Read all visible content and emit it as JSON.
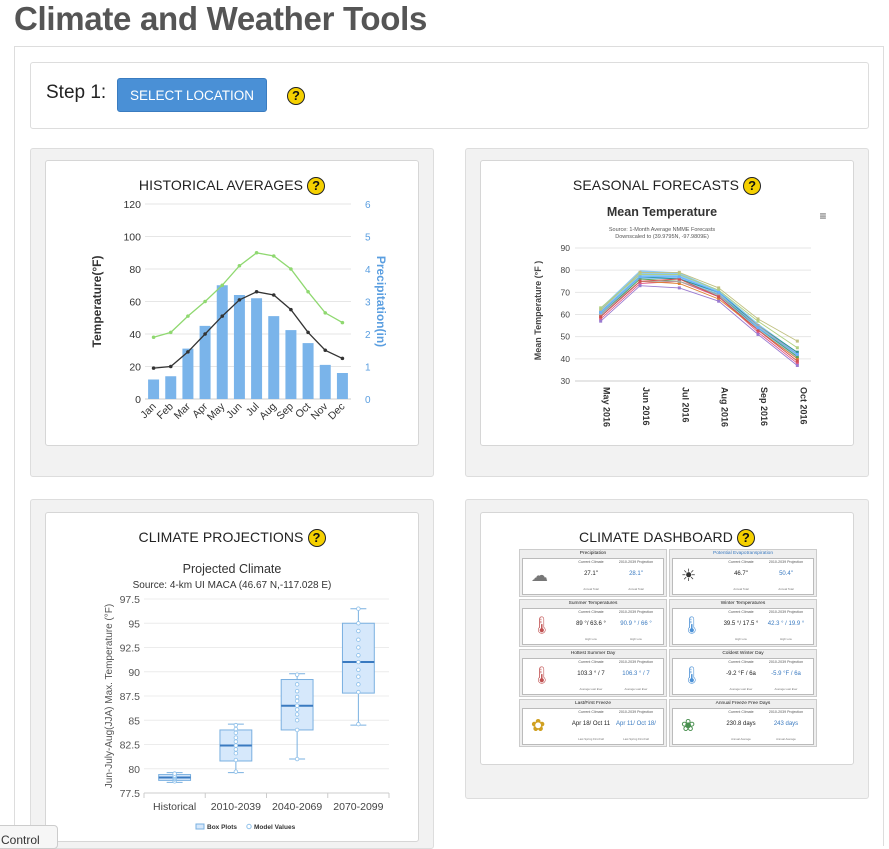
{
  "page": {
    "title": "Climate and Weather Tools"
  },
  "step": {
    "label": "Step 1:",
    "button_label": "SELECT LOCATION",
    "help_glyph": "?"
  },
  "cards": {
    "historical": {
      "title": "HISTORICAL AVERAGES"
    },
    "seasonal": {
      "title": "SEASONAL FORECASTS"
    },
    "projections": {
      "title": "CLIMATE PROJECTIONS"
    },
    "dashboard": {
      "title": "CLIMATE DASHBOARD"
    }
  },
  "control_tab": {
    "label": "Control"
  },
  "chart_data": [
    {
      "type": "bar",
      "id": "historical-averages",
      "categories": [
        "Jan",
        "Feb",
        "Mar",
        "Apr",
        "May",
        "Jun",
        "Jul",
        "Aug",
        "Sep",
        "Oct",
        "Nov",
        "Dec"
      ],
      "series": [
        {
          "name": "",
          "kind": "bar",
          "axis": "right",
          "values": [
            0.6,
            0.7,
            1.55,
            2.25,
            3.5,
            3.2,
            3.1,
            2.55,
            2.12,
            1.72,
            1.05,
            0.8
          ],
          "color": "#7ab4ea"
        },
        {
          "name": "",
          "kind": "line",
          "axis": "left",
          "values": [
            19,
            20,
            29,
            40,
            51,
            61,
            66,
            64,
            55,
            41,
            30,
            25
          ],
          "color": "#333333"
        },
        {
          "name": "",
          "kind": "line",
          "axis": "left",
          "values": [
            38,
            41,
            51,
            60,
            70,
            82,
            90,
            88,
            80,
            66,
            53,
            47
          ],
          "color": "#8fd870"
        }
      ],
      "ylabel": "Temperature(°F)",
      "y2label": "Precipitation(in)",
      "ylim": [
        0,
        120
      ],
      "y2lim": [
        0,
        6
      ],
      "yticks": [
        "0",
        "20",
        "40",
        "60",
        "80",
        "100",
        "120"
      ],
      "y2ticks": [
        "0",
        "1",
        "2",
        "3",
        "4",
        "5",
        "6"
      ]
    },
    {
      "type": "line",
      "id": "seasonal-forecast",
      "title": "Mean Temperature",
      "subtitle_lines": [
        "Source: 1-Month Average NMME Forecasts",
        "Downscaled to (39.9795N, -97.9809E)"
      ],
      "categories": [
        "May 2016",
        "Jun 2016",
        "Jul 2016",
        "Aug 2016",
        "Sep 2016",
        "Oct 2016"
      ],
      "ylabel": "Mean Temperature (°F )",
      "ylim": [
        30,
        90
      ],
      "yticks": [
        "30",
        "40",
        "50",
        "60",
        "70",
        "80",
        "90"
      ],
      "menu_glyph": "≡",
      "series": [
        {
          "name": "",
          "values": [
            58,
            74,
            75,
            68,
            52,
            38
          ],
          "color": "#e05a8a"
        },
        {
          "name": "",
          "values": [
            59,
            75,
            74,
            67,
            53,
            40
          ],
          "color": "#e08030"
        },
        {
          "name": "",
          "values": [
            60,
            76,
            75,
            69,
            54,
            41
          ],
          "color": "#5aa05a"
        },
        {
          "name": "",
          "values": [
            61,
            77,
            76,
            70,
            55,
            43
          ],
          "color": "#2a8f8f"
        },
        {
          "name": "",
          "values": [
            62,
            79,
            79,
            72,
            58,
            48
          ],
          "color": "#c0c080"
        },
        {
          "name": "",
          "values": [
            57,
            73,
            72,
            66,
            51,
            37
          ],
          "color": "#9a7ad0"
        },
        {
          "name": "",
          "values": [
            63,
            78,
            78,
            71,
            57,
            45
          ],
          "color": "#b0d080"
        },
        {
          "name": "",
          "values": [
            60,
            75,
            75,
            69,
            55,
            42
          ],
          "color": "#aaaaaa"
        },
        {
          "name": "",
          "values": [
            59,
            75,
            76,
            68,
            53,
            39
          ],
          "color": "#d05050"
        },
        {
          "name": "",
          "values": [
            61,
            77,
            77,
            70,
            54,
            42
          ],
          "color": "#6ab0ff"
        }
      ],
      "band": {
        "upper": [
          63,
          80,
          79,
          71,
          56,
          43
        ],
        "lower": [
          59,
          76,
          76,
          68,
          53,
          40
        ],
        "color": "#6ab8ee"
      }
    },
    {
      "type": "box",
      "id": "climate-projections",
      "title": "Projected Climate",
      "subtitle": "Source: 4-km UI MACA (46.67 N,-117.028 E)",
      "categories": [
        "Historical",
        "2010-2039",
        "2040-2069",
        "2070-2099"
      ],
      "ylabel": "Jun-July-Aug(JJA) Max. Temperature (°F)",
      "ylim": [
        77.5,
        97.5
      ],
      "yticks": [
        "77.5",
        "80",
        "82.5",
        "85",
        "87.5",
        "90",
        "92.5",
        "95",
        "97.5"
      ],
      "boxes": [
        {
          "min": 78.6,
          "q1": 78.8,
          "median": 79.1,
          "q3": 79.4,
          "max": 79.6
        },
        {
          "min": 79.6,
          "q1": 80.8,
          "median": 82.4,
          "q3": 84.0,
          "max": 84.6
        },
        {
          "min": 81.0,
          "q1": 84.0,
          "median": 86.5,
          "q3": 89.2,
          "max": 89.8
        },
        {
          "min": 84.5,
          "q1": 87.8,
          "median": 91.0,
          "q3": 95.0,
          "max": 96.5
        }
      ],
      "points": [
        [
          78.7,
          78.9,
          79.0,
          79.1,
          79.2,
          79.3,
          79.5
        ],
        [
          79.7,
          80.9,
          81.6,
          82.0,
          82.4,
          82.8,
          83.2,
          83.7,
          84.1,
          84.5
        ],
        [
          81.0,
          84.0,
          85.0,
          85.6,
          86.1,
          86.5,
          87.0,
          87.4,
          88.0,
          88.7,
          89.7
        ],
        [
          84.6,
          87.9,
          88.7,
          89.5,
          90.2,
          91.0,
          91.7,
          92.5,
          93.3,
          94.2,
          95.0,
          96.5
        ]
      ],
      "legend": [
        "Box Plots",
        "Model Values"
      ],
      "box_color": "#d6e8fb",
      "box_stroke": "#7ab0e0",
      "median_color": "#3a7ac0"
    }
  ],
  "dashboard": {
    "blocks": [
      {
        "title": "Precipitation",
        "title_color": "#222",
        "col1_head": "Current Climate",
        "col2_head": "2010-2039 Projection",
        "current": "27.1\"",
        "projection": "28.1\"",
        "current_note": "Annual Total",
        "projection_note": "Annual Total",
        "icon": "rain-cloud-icon"
      },
      {
        "title": "Potential Evapotranspiration",
        "title_color": "#3a7ac0",
        "col1_head": "Current Climate",
        "col2_head": "2010-2039 Projection",
        "current": "46.7\"",
        "projection": "50.4\"",
        "current_note": "Annual Total",
        "projection_note": "Annual Total",
        "icon": "evaporation-icon"
      },
      {
        "title": "Summer Temperatures",
        "title_color": "#222",
        "col1_head": "Current Climate",
        "col2_head": "2010-2039 Projection",
        "current": "89 °/ 63.6 °",
        "projection": "90.9 ° / 66 °",
        "current_note": "High   Low",
        "projection_note": "High   Low",
        "icon": "hot-thermometer-icon"
      },
      {
        "title": "Winter Temperatures",
        "title_color": "#222",
        "col1_head": "Current Climate",
        "col2_head": "2010-2039 Projection",
        "current": "39.5 °/ 17.5 °",
        "projection": "42.3 ° / 19.9 °",
        "current_note": "High   Low",
        "projection_note": "High   Low",
        "icon": "cold-thermometer-icon"
      },
      {
        "title": "Hottest Summer Day",
        "title_color": "#222",
        "col1_head": "Current Climate",
        "col2_head": "2010-2039 Projection",
        "current": "103.3 ° / 7",
        "projection": "106.3 ° / 7",
        "current_note": "Average   Last Ever",
        "projection_note": "Average   Last Ever",
        "icon": "hot-thermometer-icon"
      },
      {
        "title": "Coldest Winter Day",
        "title_color": "#222",
        "col1_head": "Current Climate",
        "col2_head": "2010-2039 Projection",
        "current": "-9.2 °F / 6a",
        "projection": "-5.9 °F / 6a",
        "current_note": "Average   Last Ever",
        "projection_note": "Average   Last Ever",
        "icon": "cold-thermometer-icon"
      },
      {
        "title": "Last/First Freeze",
        "title_color": "#222",
        "col1_head": "Current Climate",
        "col2_head": "2010-2039 Projection",
        "current": "Apr 18/ Oct 11",
        "projection": "Apr 11/ Oct 18/",
        "current_note": "Last Spring   First Fall",
        "projection_note": "Last Spring   First Fall",
        "icon": "sprout-icon"
      },
      {
        "title": "Annual Freeze Free Days",
        "title_color": "#222",
        "col1_head": "Current Climate",
        "col2_head": "2010-2039 Projection",
        "current": "230.8 days",
        "projection": "243 days",
        "current_note": "Annual Average",
        "projection_note": "Annual Average",
        "icon": "garden-icon"
      }
    ]
  }
}
